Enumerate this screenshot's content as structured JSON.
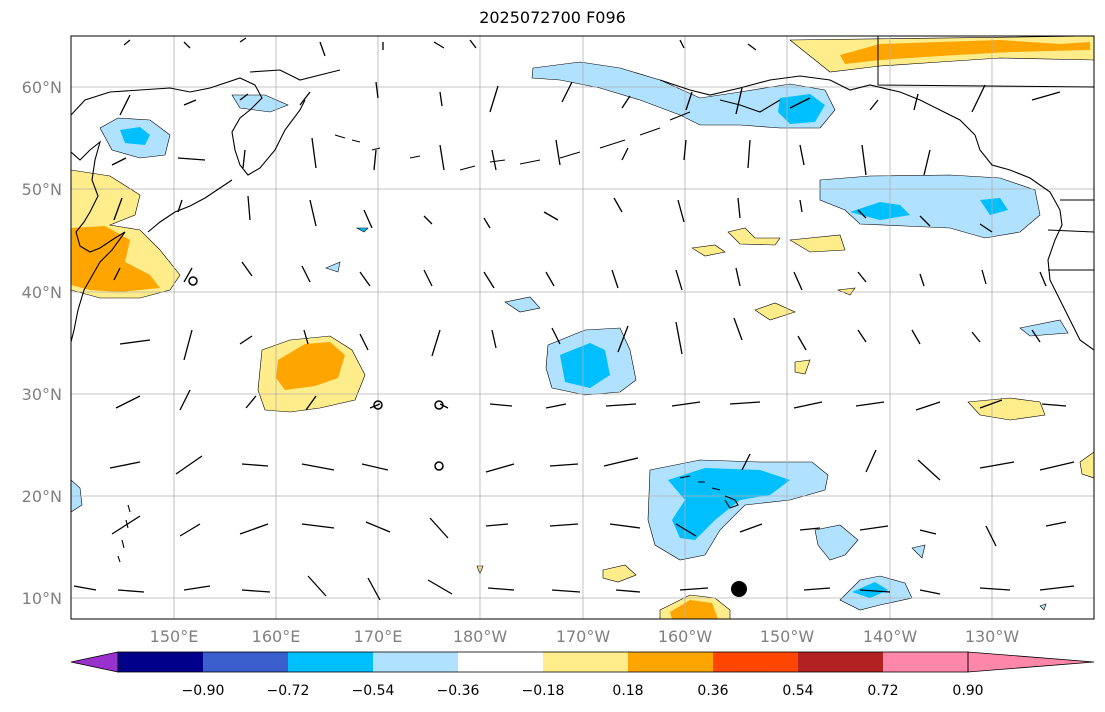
{
  "title": "2025072700 F096",
  "map": {
    "lat_labels": [
      "60°N",
      "50°N",
      "40°N",
      "30°N",
      "20°N",
      "10°N"
    ],
    "lon_labels": [
      "150°E",
      "160°E",
      "170°E",
      "180°W",
      "170°W",
      "160°W",
      "150°W",
      "140°W",
      "130°W"
    ],
    "gridlines": true
  },
  "colorbar": {
    "ticks": [
      "−0.90",
      "−0.72",
      "−0.54",
      "−0.36",
      "−0.18",
      "0.18",
      "0.36",
      "0.54",
      "0.72",
      "0.90"
    ],
    "colors": [
      "#9932CC",
      "#00008B",
      "#3A5FCD",
      "#00BFFF",
      "#B0E2FF",
      "#FFFFFF",
      "#FFEC8B",
      "#FFA500",
      "#FF4500",
      "#B22222",
      "#FF88AA"
    ]
  },
  "colors": {
    "gridline": "#b0b0b0",
    "coast": "#000000",
    "neg_light": "#B0E2FF",
    "neg_mid": "#00BFFF",
    "pos_light": "#FFEC8B",
    "pos_mid": "#FFA500"
  },
  "markers": {
    "storm_center": "filled-circle",
    "calm_circles": 5
  }
}
